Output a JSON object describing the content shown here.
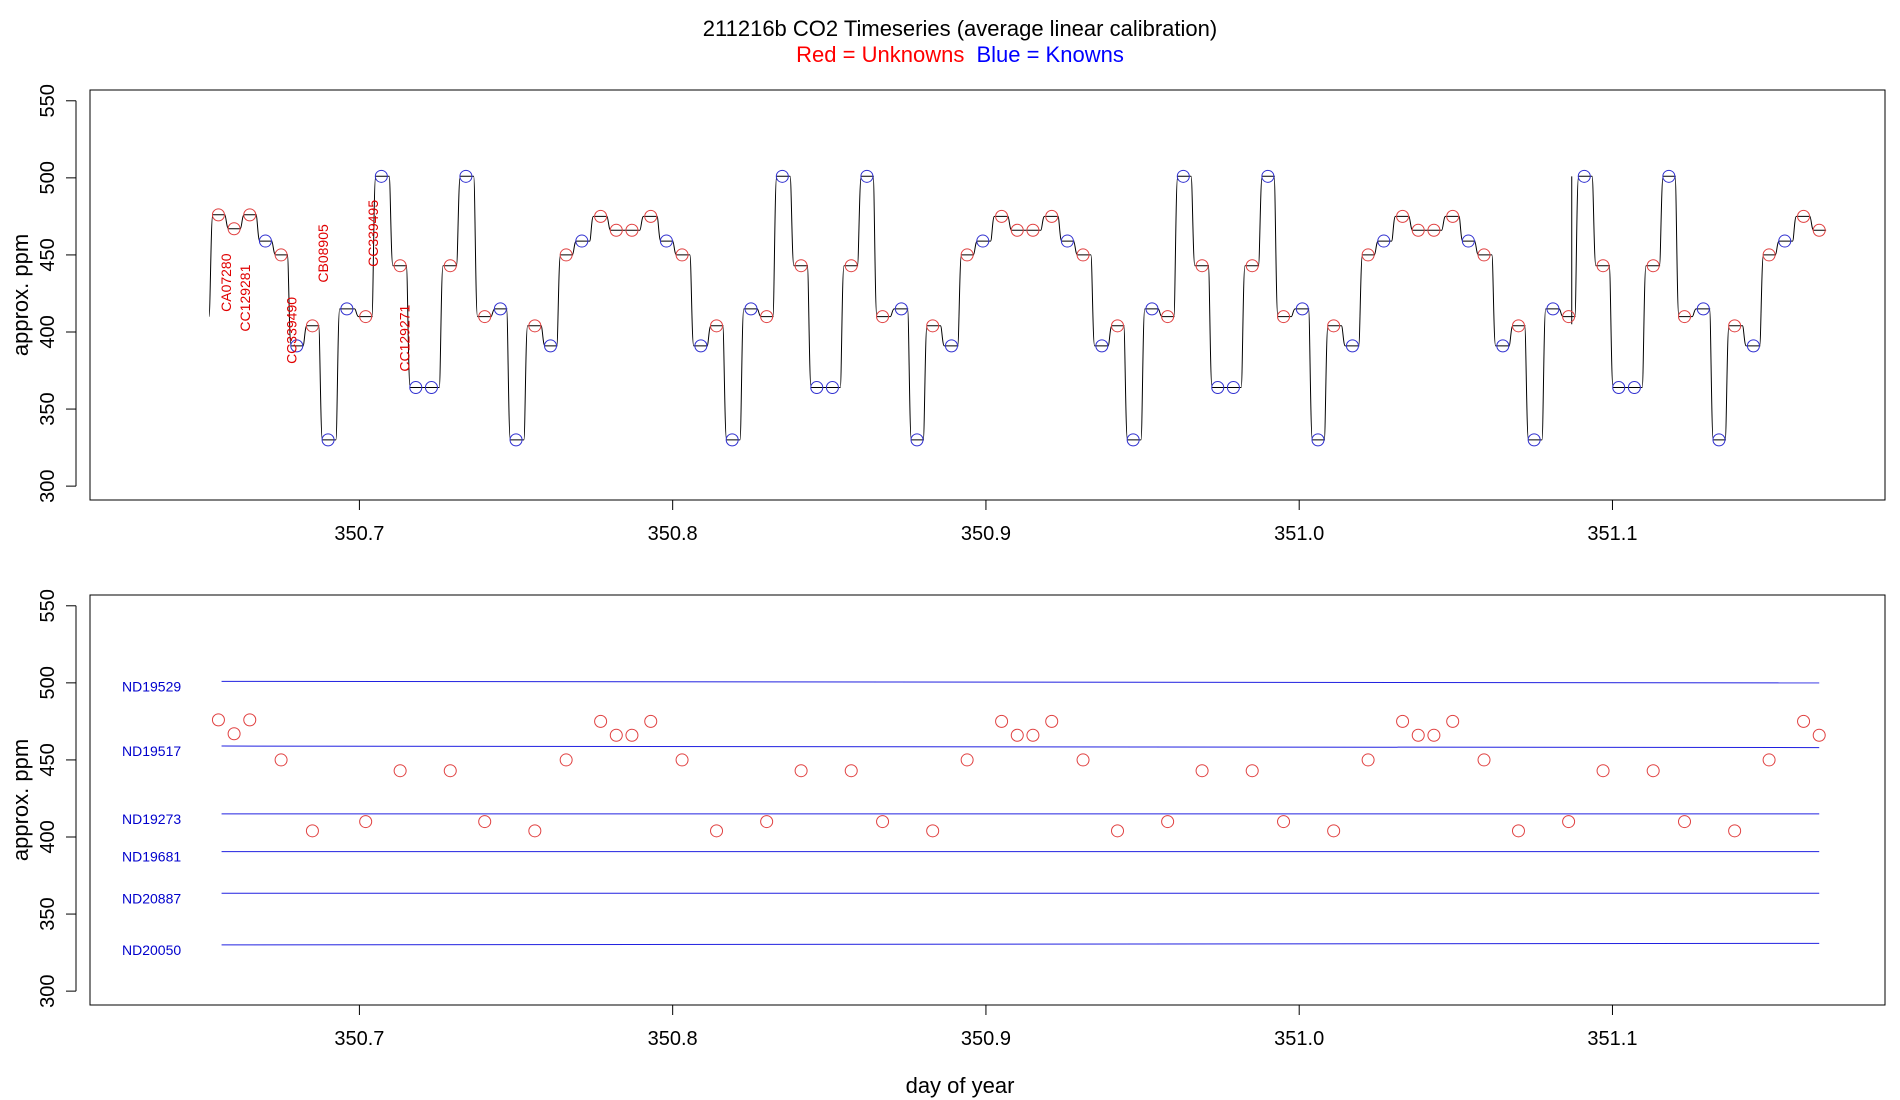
{
  "colors": {
    "unknown": "#e04040",
    "known": "#3030d0",
    "label_red": "#e00000",
    "label_blue": "#0000cc",
    "trace": "#000000",
    "ref_line": "#2020e0"
  },
  "chart_data": {
    "type": "scatter",
    "title": "211216b   CO2 Timeseries (average linear calibration)",
    "legend_unknowns": "Red = Unknowns",
    "legend_knowns": "Blue = Knowns",
    "panels": [
      {
        "name": "timeseries",
        "ylabel": "approx. ppm",
        "xlabel": "",
        "xlim": [
          350.614,
          351.187
        ],
        "ylim": [
          291,
          557
        ],
        "xticks": [
          "350.7",
          "350.8",
          "350.9",
          "351.0",
          "351.1"
        ],
        "yticks": [
          "300",
          "350",
          "400",
          "450",
          "500",
          "550"
        ],
        "trace_start": [
          350.652,
          410
        ],
        "trace_glitch": [
          351.087,
          405
        ],
        "points": [
          [
            350.655,
            476,
            "u"
          ],
          [
            350.66,
            467,
            "u"
          ],
          [
            350.665,
            476,
            "u"
          ],
          [
            350.67,
            459,
            "k"
          ],
          [
            350.675,
            450,
            "u"
          ],
          [
            350.68,
            391,
            "k"
          ],
          [
            350.685,
            404,
            "u"
          ],
          [
            350.69,
            330,
            "k"
          ],
          [
            350.696,
            415,
            "k"
          ],
          [
            350.702,
            410,
            "u"
          ],
          [
            350.707,
            501,
            "k"
          ],
          [
            350.713,
            443,
            "u"
          ],
          [
            350.718,
            364,
            "k"
          ],
          [
            350.723,
            364,
            "k"
          ],
          [
            350.729,
            443,
            "u"
          ],
          [
            350.734,
            501,
            "k"
          ],
          [
            350.74,
            410,
            "u"
          ],
          [
            350.745,
            415,
            "k"
          ],
          [
            350.75,
            330,
            "k"
          ],
          [
            350.756,
            404,
            "u"
          ],
          [
            350.761,
            391,
            "k"
          ],
          [
            350.766,
            450,
            "u"
          ],
          [
            350.771,
            459,
            "k"
          ],
          [
            350.777,
            475,
            "u"
          ],
          [
            350.782,
            466,
            "u"
          ],
          [
            350.787,
            466,
            "u"
          ],
          [
            350.793,
            475,
            "u"
          ],
          [
            350.798,
            459,
            "k"
          ],
          [
            350.803,
            450,
            "u"
          ],
          [
            350.809,
            391,
            "k"
          ],
          [
            350.814,
            404,
            "u"
          ],
          [
            350.819,
            330,
            "k"
          ],
          [
            350.825,
            415,
            "k"
          ],
          [
            350.83,
            410,
            "u"
          ],
          [
            350.835,
            501,
            "k"
          ],
          [
            350.841,
            443,
            "u"
          ],
          [
            350.846,
            364,
            "k"
          ],
          [
            350.851,
            364,
            "k"
          ],
          [
            350.857,
            443,
            "u"
          ],
          [
            350.862,
            501,
            "k"
          ],
          [
            350.867,
            410,
            "u"
          ],
          [
            350.873,
            415,
            "k"
          ],
          [
            350.878,
            330,
            "k"
          ],
          [
            350.883,
            404,
            "u"
          ],
          [
            350.889,
            391,
            "k"
          ],
          [
            350.894,
            450,
            "u"
          ],
          [
            350.899,
            459,
            "k"
          ],
          [
            350.905,
            475,
            "u"
          ],
          [
            350.91,
            466,
            "u"
          ],
          [
            350.915,
            466,
            "u"
          ],
          [
            350.921,
            475,
            "u"
          ],
          [
            350.926,
            459,
            "k"
          ],
          [
            350.931,
            450,
            "u"
          ],
          [
            350.937,
            391,
            "k"
          ],
          [
            350.942,
            404,
            "u"
          ],
          [
            350.947,
            330,
            "k"
          ],
          [
            350.953,
            415,
            "k"
          ],
          [
            350.958,
            410,
            "u"
          ],
          [
            350.963,
            501,
            "k"
          ],
          [
            350.969,
            443,
            "u"
          ],
          [
            350.974,
            364,
            "k"
          ],
          [
            350.979,
            364,
            "k"
          ],
          [
            350.985,
            443,
            "u"
          ],
          [
            350.99,
            501,
            "k"
          ],
          [
            350.995,
            410,
            "u"
          ],
          [
            351.001,
            415,
            "k"
          ],
          [
            351.006,
            330,
            "k"
          ],
          [
            351.011,
            404,
            "u"
          ],
          [
            351.017,
            391,
            "k"
          ],
          [
            351.022,
            450,
            "u"
          ],
          [
            351.027,
            459,
            "k"
          ],
          [
            351.033,
            475,
            "u"
          ],
          [
            351.038,
            466,
            "u"
          ],
          [
            351.043,
            466,
            "u"
          ],
          [
            351.049,
            475,
            "u"
          ],
          [
            351.054,
            459,
            "k"
          ],
          [
            351.059,
            450,
            "u"
          ],
          [
            351.065,
            391,
            "k"
          ],
          [
            351.07,
            404,
            "u"
          ],
          [
            351.075,
            330,
            "k"
          ],
          [
            351.081,
            415,
            "k"
          ],
          [
            351.086,
            410,
            "u"
          ],
          [
            351.091,
            501,
            "k"
          ],
          [
            351.097,
            443,
            "u"
          ],
          [
            351.102,
            364,
            "k"
          ],
          [
            351.107,
            364,
            "k"
          ],
          [
            351.113,
            443,
            "u"
          ],
          [
            351.118,
            501,
            "k"
          ],
          [
            351.123,
            410,
            "u"
          ],
          [
            351.129,
            415,
            "k"
          ],
          [
            351.134,
            330,
            "k"
          ],
          [
            351.139,
            404,
            "u"
          ],
          [
            351.145,
            391,
            "k"
          ],
          [
            351.15,
            450,
            "u"
          ],
          [
            351.155,
            459,
            "k"
          ],
          [
            351.161,
            475,
            "u"
          ],
          [
            351.166,
            466,
            "u"
          ]
        ],
        "annotations": [
          {
            "text": "CA07280",
            "x": 350.659,
            "y": 432
          },
          {
            "text": "CC129281",
            "x": 350.665,
            "y": 422
          },
          {
            "text": "CC339490",
            "x": 350.68,
            "y": 401
          },
          {
            "text": "CB08905",
            "x": 350.69,
            "y": 451
          },
          {
            "text": "CC339495",
            "x": 350.706,
            "y": 464
          },
          {
            "text": "CC129271",
            "x": 350.716,
            "y": 396
          }
        ]
      },
      {
        "name": "unknowns_vs_references",
        "ylabel": "approx. ppm",
        "xlabel": "day of year",
        "xlim": [
          350.614,
          351.187
        ],
        "ylim": [
          291,
          557
        ],
        "xticks": [
          "350.7",
          "350.8",
          "350.9",
          "351.0",
          "351.1"
        ],
        "yticks": [
          "300",
          "350",
          "400",
          "450",
          "500",
          "550"
        ],
        "reference_lines": [
          {
            "name": "ND19529",
            "y_start": 501,
            "y_end": 500
          },
          {
            "name": "ND19517",
            "y_start": 459,
            "y_end": 458
          },
          {
            "name": "ND19273",
            "y_start": 415,
            "y_end": 415
          },
          {
            "name": "ND19681",
            "y_start": 390.5,
            "y_end": 390.5
          },
          {
            "name": "ND20887",
            "y_start": 363.5,
            "y_end": 363.5
          },
          {
            "name": "ND20050",
            "y_start": 330,
            "y_end": 331
          }
        ],
        "ref_x_range": [
          350.656,
          351.166
        ],
        "unknowns": [
          [
            350.655,
            476
          ],
          [
            350.66,
            467
          ],
          [
            350.665,
            476
          ],
          [
            350.675,
            450
          ],
          [
            350.685,
            404
          ],
          [
            350.702,
            410
          ],
          [
            350.713,
            443
          ],
          [
            350.729,
            443
          ],
          [
            350.74,
            410
          ],
          [
            350.756,
            404
          ],
          [
            350.766,
            450
          ],
          [
            350.777,
            475
          ],
          [
            350.782,
            466
          ],
          [
            350.787,
            466
          ],
          [
            350.793,
            475
          ],
          [
            350.803,
            450
          ],
          [
            350.814,
            404
          ],
          [
            350.83,
            410
          ],
          [
            350.841,
            443
          ],
          [
            350.857,
            443
          ],
          [
            350.867,
            410
          ],
          [
            350.883,
            404
          ],
          [
            350.894,
            450
          ],
          [
            350.905,
            475
          ],
          [
            350.91,
            466
          ],
          [
            350.915,
            466
          ],
          [
            350.921,
            475
          ],
          [
            350.931,
            450
          ],
          [
            350.942,
            404
          ],
          [
            350.958,
            410
          ],
          [
            350.969,
            443
          ],
          [
            350.985,
            443
          ],
          [
            350.995,
            410
          ],
          [
            351.011,
            404
          ],
          [
            351.022,
            450
          ],
          [
            351.033,
            475
          ],
          [
            351.038,
            466
          ],
          [
            351.043,
            466
          ],
          [
            351.049,
            475
          ],
          [
            351.059,
            450
          ],
          [
            351.07,
            404
          ],
          [
            351.086,
            410
          ],
          [
            351.097,
            443
          ],
          [
            351.113,
            443
          ],
          [
            351.123,
            410
          ],
          [
            351.139,
            404
          ],
          [
            351.15,
            450
          ],
          [
            351.161,
            475
          ],
          [
            351.166,
            466
          ]
        ]
      }
    ]
  }
}
